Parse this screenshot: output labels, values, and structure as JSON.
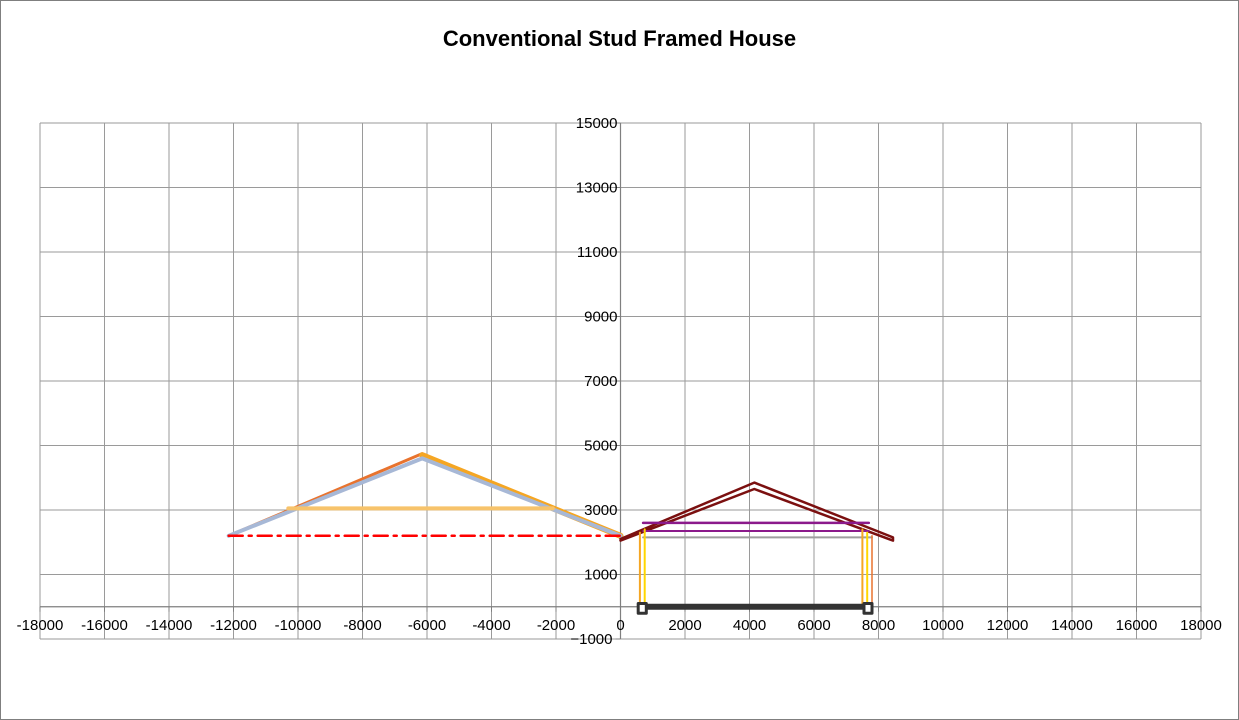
{
  "chart_data": {
    "type": "line",
    "title": "Conventional Stud Framed House",
    "xlabel": "",
    "ylabel": "",
    "xlim": [
      -18000,
      18000
    ],
    "ylim": [
      -1000,
      15000
    ],
    "x_ticks": [
      -18000,
      -16000,
      -14000,
      -12000,
      -10000,
      -8000,
      -6000,
      -4000,
      -2000,
      0,
      2000,
      4000,
      6000,
      8000,
      10000,
      12000,
      14000,
      16000,
      18000
    ],
    "y_ticks": [
      -1000,
      1000,
      3000,
      5000,
      7000,
      9000,
      11000,
      13000,
      15000
    ],
    "grid": true,
    "legend": "none",
    "series": [
      {
        "color": "#E8732E",
        "width": 3,
        "points": [
          [
            -12150,
            2200
          ],
          [
            -6150,
            4750
          ],
          [
            0,
            2150
          ]
        ]
      },
      {
        "color": "#F5A623",
        "width": 6,
        "points": [
          [
            -6150,
            4700
          ],
          [
            0,
            2200
          ]
        ]
      },
      {
        "color": "#A7B8D6",
        "width": 4,
        "points": [
          [
            -12150,
            2200
          ],
          [
            -6150,
            4600
          ],
          [
            0,
            2200
          ]
        ]
      },
      {
        "color": "#F7C36B",
        "width": 4,
        "points": [
          [
            -10300,
            3050
          ],
          [
            -2100,
            3050
          ]
        ]
      },
      {
        "color": "#FF0000",
        "width": 2.5,
        "dash": "dashdot",
        "points": [
          [
            -12150,
            2200
          ],
          [
            0,
            2200
          ]
        ]
      },
      {
        "color": "#7B1010",
        "width": 2.5,
        "points": [
          [
            0,
            2100
          ],
          [
            4150,
            3850
          ],
          [
            8450,
            2150
          ],
          [
            8450,
            2050
          ],
          [
            4150,
            3650
          ],
          [
            0,
            2050
          ]
        ]
      },
      {
        "color": "#8B1A8B",
        "width": 2.5,
        "points": [
          [
            700,
            2600
          ],
          [
            7700,
            2600
          ]
        ]
      },
      {
        "color": "#8B1A8B",
        "width": 2,
        "points": [
          [
            700,
            2350
          ],
          [
            7700,
            2350
          ]
        ]
      },
      {
        "color": "#9E9E9E",
        "width": 2,
        "points": [
          [
            700,
            2150
          ],
          [
            7800,
            2150
          ]
        ]
      },
      {
        "color": "#F5A623",
        "width": 2,
        "points": [
          [
            600,
            0
          ],
          [
            600,
            2300
          ]
        ]
      },
      {
        "color": "#FFD700",
        "width": 2,
        "points": [
          [
            750,
            0
          ],
          [
            750,
            2400
          ]
        ]
      },
      {
        "color": "#F5A623",
        "width": 2,
        "points": [
          [
            7500,
            0
          ],
          [
            7500,
            2400
          ]
        ]
      },
      {
        "color": "#FFD700",
        "width": 2,
        "points": [
          [
            7650,
            0
          ],
          [
            7650,
            2300
          ]
        ]
      },
      {
        "color": "#E8732E",
        "width": 1.5,
        "points": [
          [
            7800,
            0
          ],
          [
            7800,
            2200
          ]
        ]
      },
      {
        "color": "#333333",
        "width": 6,
        "points": [
          [
            700,
            0
          ],
          [
            7700,
            0
          ]
        ]
      },
      {
        "color": "#333333",
        "width": 3,
        "box": true,
        "points": [
          [
            550,
            -200
          ],
          [
            800,
            -200
          ],
          [
            800,
            100
          ],
          [
            550,
            100
          ],
          [
            550,
            -200
          ]
        ]
      },
      {
        "color": "#333333",
        "width": 3,
        "box": true,
        "points": [
          [
            7550,
            -200
          ],
          [
            7800,
            -200
          ],
          [
            7800,
            100
          ],
          [
            7550,
            100
          ],
          [
            7550,
            -200
          ]
        ]
      }
    ]
  }
}
